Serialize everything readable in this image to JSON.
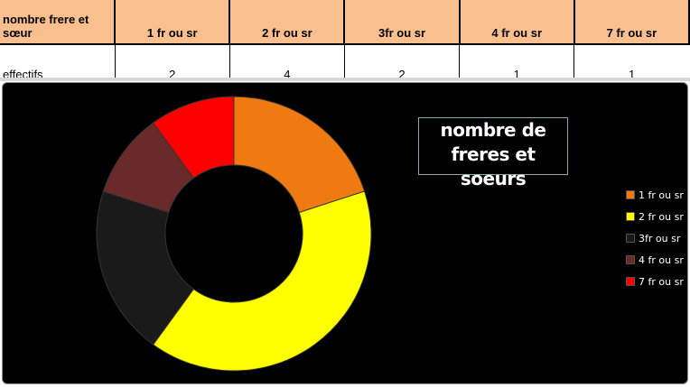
{
  "table": {
    "header": [
      "nombre frere et sœur",
      "1 fr ou sr",
      "2 fr ou sr",
      "3fr ou sr",
      "4 fr ou sr",
      "7 fr ou sr"
    ],
    "row": [
      "effectifs",
      "2",
      "4",
      "2",
      "1",
      "1"
    ]
  },
  "chart_data": {
    "type": "pie",
    "donut": true,
    "title": "nombre de freres et soeurs",
    "categories": [
      "1 fr ou sr",
      "2 fr ou sr",
      "3fr ou sr",
      "4 fr ou sr",
      "7 fr ou sr"
    ],
    "values": [
      2,
      4,
      2,
      1,
      1
    ],
    "colors": [
      "#f07a12",
      "#ffff00",
      "#1a1a1a",
      "#6b2a2a",
      "#ff0000"
    ],
    "legend": "right"
  }
}
